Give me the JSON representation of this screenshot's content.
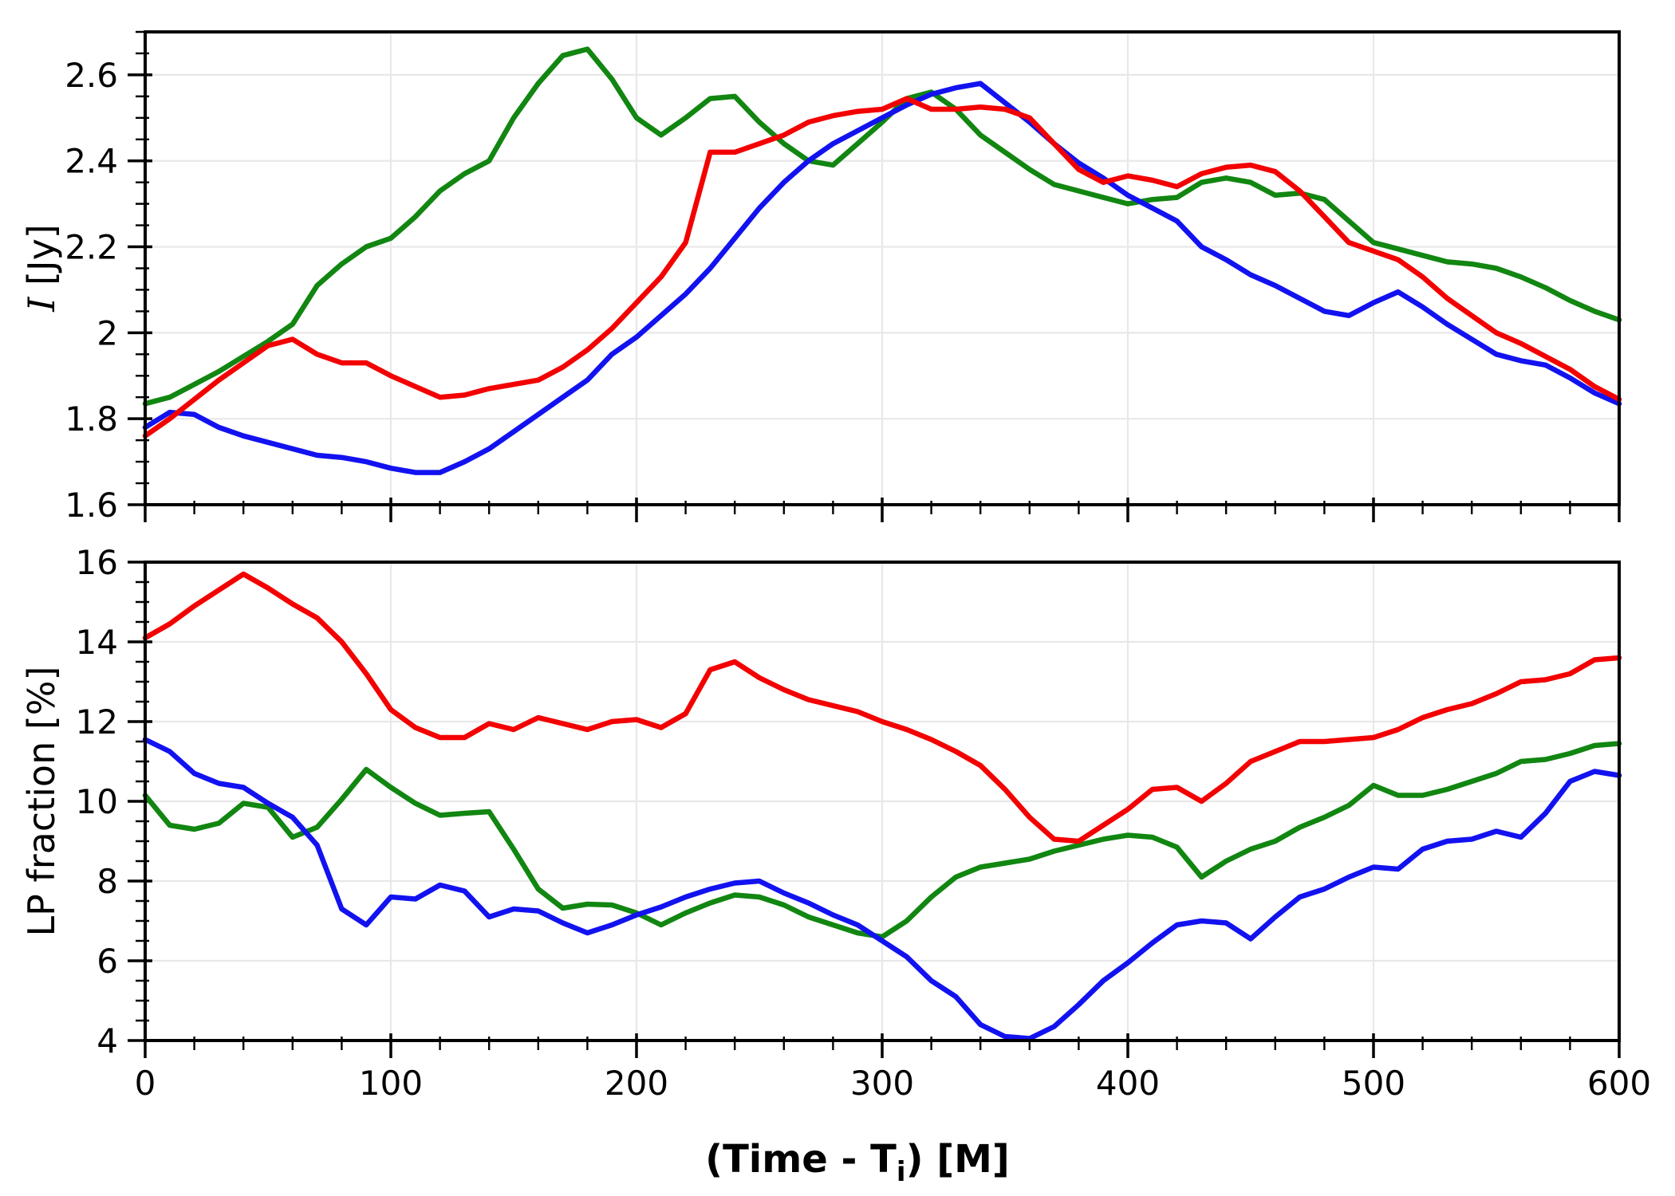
{
  "figure_kind": "two-panel time-series light curve",
  "colors": {
    "red": "#f30000",
    "green": "#118611",
    "blue": "#1212f0",
    "grid": "#e8e8e8",
    "spine": "#000000",
    "background": "#ffffff"
  },
  "labels": {
    "top_ylabel_math": "I",
    "top_ylabel_unit": " [Jy]",
    "bottom_ylabel": "LP fraction [%]",
    "xlabel_pre": "(Time - T",
    "xlabel_sub": "i",
    "xlabel_post": ") [M]"
  },
  "chart_data": [
    {
      "type": "line",
      "panel": "top",
      "title": "",
      "ylabel": "I [Jy]",
      "xlabel": "",
      "ylim": [
        1.6,
        2.7
      ],
      "xlim": [
        0,
        600
      ],
      "grid": true,
      "legend": "none",
      "ytick_values": [
        1.6,
        1.8,
        2.0,
        2.2,
        2.4,
        2.6
      ],
      "ytick_labels": [
        "1.6",
        "1.8",
        "2",
        "2.2",
        "2.4",
        "2.6"
      ],
      "ytick_minor_step": 0.05,
      "xtick_values": [
        0,
        100,
        200,
        300,
        400,
        500,
        600
      ],
      "xtick_labels": [
        "",
        "",
        "",
        "",
        "",
        "",
        ""
      ],
      "xtick_minor_step": 20,
      "x": [
        0,
        10,
        20,
        30,
        40,
        50,
        60,
        70,
        80,
        90,
        100,
        110,
        120,
        130,
        140,
        150,
        160,
        170,
        180,
        190,
        200,
        210,
        220,
        230,
        240,
        250,
        260,
        270,
        280,
        290,
        300,
        310,
        320,
        330,
        340,
        350,
        360,
        370,
        380,
        390,
        400,
        410,
        420,
        430,
        440,
        450,
        460,
        470,
        480,
        490,
        500,
        510,
        520,
        530,
        540,
        550,
        560,
        570,
        580,
        590,
        600
      ],
      "series": [
        {
          "name": "red",
          "color_key": "red",
          "values": [
            1.76,
            1.8,
            1.845,
            1.89,
            1.93,
            1.97,
            1.985,
            1.95,
            1.93,
            1.93,
            1.9,
            1.875,
            1.85,
            1.855,
            1.87,
            1.88,
            1.89,
            1.92,
            1.96,
            2.01,
            2.07,
            2.13,
            2.21,
            2.42,
            2.42,
            2.44,
            2.46,
            2.49,
            2.505,
            2.515,
            2.52,
            2.545,
            2.52,
            2.52,
            2.525,
            2.52,
            2.5,
            2.44,
            2.38,
            2.35,
            2.365,
            2.355,
            2.34,
            2.37,
            2.385,
            2.39,
            2.375,
            2.33,
            2.27,
            2.21,
            2.19,
            2.17,
            2.13,
            2.08,
            2.04,
            2.0,
            1.975,
            1.945,
            1.915,
            1.875,
            1.845
          ]
        },
        {
          "name": "green",
          "color_key": "green",
          "values": [
            1.835,
            1.85,
            1.88,
            1.91,
            1.945,
            1.98,
            2.02,
            2.11,
            2.16,
            2.2,
            2.22,
            2.27,
            2.33,
            2.37,
            2.4,
            2.5,
            2.58,
            2.645,
            2.66,
            2.59,
            2.5,
            2.46,
            2.5,
            2.545,
            2.55,
            2.49,
            2.44,
            2.4,
            2.39,
            2.44,
            2.49,
            2.545,
            2.56,
            2.52,
            2.46,
            2.42,
            2.38,
            2.345,
            2.33,
            2.315,
            2.3,
            2.31,
            2.315,
            2.35,
            2.36,
            2.35,
            2.32,
            2.325,
            2.31,
            2.26,
            2.21,
            2.195,
            2.18,
            2.165,
            2.16,
            2.15,
            2.13,
            2.105,
            2.075,
            2.05,
            2.03
          ]
        },
        {
          "name": "blue",
          "color_key": "blue",
          "values": [
            1.78,
            1.815,
            1.81,
            1.78,
            1.76,
            1.745,
            1.73,
            1.715,
            1.71,
            1.7,
            1.685,
            1.675,
            1.675,
            1.7,
            1.73,
            1.77,
            1.81,
            1.85,
            1.89,
            1.95,
            1.99,
            2.04,
            2.09,
            2.15,
            2.22,
            2.29,
            2.35,
            2.4,
            2.44,
            2.47,
            2.5,
            2.53,
            2.555,
            2.57,
            2.58,
            2.535,
            2.49,
            2.44,
            2.395,
            2.36,
            2.32,
            2.29,
            2.26,
            2.2,
            2.17,
            2.135,
            2.11,
            2.08,
            2.05,
            2.04,
            2.07,
            2.095,
            2.06,
            2.02,
            1.985,
            1.95,
            1.935,
            1.925,
            1.895,
            1.86,
            1.835
          ]
        }
      ]
    },
    {
      "type": "line",
      "panel": "bottom",
      "title": "",
      "ylabel": "LP fraction [%]",
      "xlabel": "(Time - Tᵢ) [M]",
      "ylim": [
        4,
        16
      ],
      "xlim": [
        0,
        600
      ],
      "grid": true,
      "legend": "none",
      "ytick_values": [
        4,
        6,
        8,
        10,
        12,
        14,
        16
      ],
      "ytick_labels": [
        "4",
        "6",
        "8",
        "10",
        "12",
        "14",
        "16"
      ],
      "ytick_minor_step": 0.5,
      "xtick_values": [
        0,
        100,
        200,
        300,
        400,
        500,
        600
      ],
      "xtick_labels": [
        "0",
        "100",
        "200",
        "300",
        "400",
        "500",
        "600"
      ],
      "xtick_minor_step": 20,
      "x": [
        0,
        10,
        20,
        30,
        40,
        50,
        60,
        70,
        80,
        90,
        100,
        110,
        120,
        130,
        140,
        150,
        160,
        170,
        180,
        190,
        200,
        210,
        220,
        230,
        240,
        250,
        260,
        270,
        280,
        290,
        300,
        310,
        320,
        330,
        340,
        350,
        360,
        370,
        380,
        390,
        400,
        410,
        420,
        430,
        440,
        450,
        460,
        470,
        480,
        490,
        500,
        510,
        520,
        530,
        540,
        550,
        560,
        570,
        580,
        590,
        600
      ],
      "series": [
        {
          "name": "red",
          "color_key": "red",
          "values": [
            14.1,
            14.45,
            14.9,
            15.3,
            15.7,
            15.35,
            14.95,
            14.6,
            14.0,
            13.2,
            12.3,
            11.85,
            11.6,
            11.6,
            11.95,
            11.8,
            12.1,
            11.95,
            11.8,
            12.0,
            12.05,
            11.85,
            12.2,
            13.3,
            13.5,
            13.1,
            12.8,
            12.55,
            12.4,
            12.25,
            12.0,
            11.8,
            11.55,
            11.25,
            10.9,
            10.3,
            9.6,
            9.05,
            9.0,
            9.4,
            9.8,
            10.3,
            10.35,
            10.0,
            10.45,
            11.0,
            11.25,
            11.5,
            11.5,
            11.55,
            11.6,
            11.8,
            12.1,
            12.3,
            12.45,
            12.7,
            13.0,
            13.05,
            13.2,
            13.55,
            13.6
          ]
        },
        {
          "name": "green",
          "color_key": "green",
          "values": [
            10.15,
            9.4,
            9.3,
            9.45,
            9.95,
            9.85,
            9.1,
            9.35,
            10.05,
            10.8,
            10.35,
            9.95,
            9.65,
            9.7,
            9.74,
            8.8,
            7.8,
            7.32,
            7.42,
            7.4,
            7.2,
            6.9,
            7.2,
            7.45,
            7.65,
            7.6,
            7.4,
            7.1,
            6.9,
            6.7,
            6.6,
            7.0,
            7.6,
            8.1,
            8.35,
            8.45,
            8.55,
            8.75,
            8.9,
            9.05,
            9.15,
            9.1,
            8.85,
            8.1,
            8.5,
            8.8,
            9.0,
            9.35,
            9.6,
            9.9,
            10.4,
            10.15,
            10.15,
            10.3,
            10.5,
            10.7,
            11.0,
            11.05,
            11.2,
            11.4,
            11.45
          ]
        },
        {
          "name": "blue",
          "color_key": "blue",
          "values": [
            11.55,
            11.25,
            10.7,
            10.45,
            10.35,
            9.95,
            9.6,
            8.9,
            7.3,
            6.9,
            7.6,
            7.55,
            7.9,
            7.75,
            7.1,
            7.3,
            7.25,
            6.95,
            6.7,
            6.9,
            7.15,
            7.35,
            7.6,
            7.8,
            7.95,
            8.0,
            7.7,
            7.45,
            7.15,
            6.9,
            6.5,
            6.1,
            5.5,
            5.1,
            4.4,
            4.1,
            4.05,
            4.35,
            4.9,
            5.5,
            5.95,
            6.45,
            6.9,
            7.0,
            6.95,
            6.55,
            7.1,
            7.6,
            7.8,
            8.1,
            8.35,
            8.3,
            8.8,
            9.0,
            9.05,
            9.25,
            9.1,
            9.7,
            10.5,
            10.75,
            10.65
          ]
        }
      ]
    }
  ]
}
